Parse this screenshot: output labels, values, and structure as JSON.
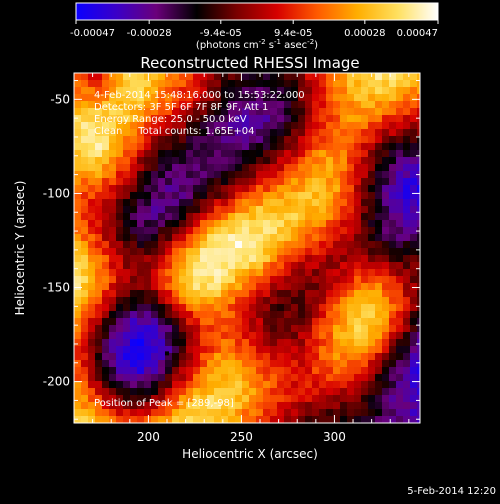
{
  "colorbar": {
    "tick_labels": [
      "-0.00047",
      "-0.00028",
      "-9.4e-05",
      "9.4e-05",
      "0.00028",
      "0.00047"
    ],
    "tick_values": [
      -0.00047,
      -0.00028,
      -9.4e-05,
      9.4e-05,
      0.00028,
      0.00047
    ],
    "range": [
      -0.00047,
      0.00047
    ],
    "units_prefix": "(photons cm",
    "units_exp1": "-2",
    "units_mid": " s",
    "units_exp2": "-1",
    "units_mid2": " asec",
    "units_exp3": "-2",
    "units_suffix": ")",
    "colors": [
      "#0a00ff",
      "#3a00c8",
      "#6a007a",
      "#000000",
      "#7a0000",
      "#d60000",
      "#ff5a00",
      "#ffae00",
      "#ffe060",
      "#ffffff"
    ]
  },
  "chart_data": {
    "type": "heatmap",
    "title": "Reconstructed RHESSI Image",
    "xlabel": "Heliocentric X (arcsec)",
    "ylabel": "Heliocentric Y (arcsec)",
    "xlim": [
      160,
      346
    ],
    "ylim": [
      -222,
      -36
    ],
    "x_ticks": [
      200,
      250,
      300
    ],
    "y_ticks": [
      -50,
      -100,
      -150,
      -200
    ],
    "x_tick_labels": [
      "200",
      "250",
      "300"
    ],
    "y_tick_labels": [
      "-50",
      "-100",
      "-150",
      "-200"
    ],
    "annotations": [
      "4-Feb-2014 15:48:16.000 to 15:53:22.000",
      "Detectors: 3F 5F 6F 7F 8F 9F, Att 1",
      "Energy Range: 25.0 - 50.0 keV",
      "Clean     Total counts: 1.65E+04"
    ],
    "peak_label": "Position of Peak = [289,-98]",
    "peak_position": [
      289,
      -98
    ],
    "marker_position": [
      210,
      -185
    ],
    "grid": false,
    "colormap": "blue-black-red-yellow-white",
    "value_range": [
      -0.00047,
      0.00047
    ],
    "intensity_grid_rows_top_to_bottom": [
      [
        0.3,
        0.15,
        0.6,
        0.75,
        0.55,
        0.4,
        0.15,
        -0.1,
        -0.3,
        -0.4,
        -0.3,
        -0.1,
        0.2,
        0.5,
        0.7,
        0.8,
        0.75,
        0.6
      ],
      [
        0.5,
        0.45,
        0.65,
        0.7,
        0.45,
        0.25,
        0.05,
        -0.25,
        -0.45,
        -0.55,
        -0.45,
        -0.2,
        0.15,
        0.45,
        0.6,
        0.6,
        0.45,
        0.35
      ],
      [
        0.75,
        0.8,
        0.7,
        0.5,
        0.2,
        0.0,
        -0.25,
        -0.5,
        -0.65,
        -0.65,
        -0.5,
        -0.2,
        0.15,
        0.4,
        0.45,
        0.25,
        0.1,
        0.0
      ],
      [
        0.8,
        0.85,
        0.6,
        0.2,
        -0.1,
        -0.3,
        -0.45,
        -0.55,
        -0.55,
        -0.45,
        -0.25,
        0.05,
        0.35,
        0.45,
        0.2,
        -0.1,
        -0.3,
        -0.35
      ],
      [
        0.55,
        0.6,
        0.35,
        -0.05,
        -0.35,
        -0.5,
        -0.55,
        -0.45,
        -0.3,
        -0.1,
        0.1,
        0.35,
        0.55,
        0.5,
        0.1,
        -0.35,
        -0.65,
        -0.75
      ],
      [
        0.3,
        0.25,
        0.05,
        -0.3,
        -0.55,
        -0.6,
        -0.45,
        -0.2,
        0.05,
        0.3,
        0.45,
        0.6,
        0.65,
        0.45,
        0.0,
        -0.45,
        -0.8,
        -0.9
      ],
      [
        0.25,
        0.1,
        -0.2,
        -0.5,
        -0.6,
        -0.4,
        -0.05,
        0.3,
        0.55,
        0.7,
        0.7,
        0.7,
        0.55,
        0.3,
        -0.05,
        -0.45,
        -0.7,
        -0.75
      ],
      [
        0.45,
        0.2,
        -0.15,
        -0.35,
        -0.3,
        0.05,
        0.5,
        0.8,
        0.9,
        0.85,
        0.7,
        0.5,
        0.3,
        0.1,
        -0.15,
        -0.4,
        -0.5,
        -0.45
      ],
      [
        0.75,
        0.45,
        0.05,
        -0.15,
        0.05,
        0.45,
        0.85,
        0.95,
        0.9,
        0.7,
        0.4,
        0.15,
        0.0,
        -0.05,
        0.0,
        -0.1,
        -0.2,
        -0.2
      ],
      [
        0.8,
        0.5,
        0.1,
        -0.1,
        0.15,
        0.55,
        0.85,
        0.8,
        0.55,
        0.25,
        0.0,
        -0.15,
        -0.1,
        0.15,
        0.35,
        0.35,
        0.1,
        -0.15
      ],
      [
        0.55,
        0.25,
        -0.2,
        -0.45,
        -0.25,
        0.2,
        0.5,
        0.5,
        0.25,
        0.0,
        -0.2,
        -0.2,
        0.05,
        0.45,
        0.7,
        0.6,
        0.25,
        -0.2
      ],
      [
        0.35,
        -0.1,
        -0.6,
        -0.85,
        -0.7,
        -0.25,
        0.15,
        0.3,
        0.2,
        0.0,
        -0.15,
        -0.1,
        0.2,
        0.55,
        0.75,
        0.55,
        0.05,
        -0.45
      ],
      [
        0.25,
        -0.25,
        -0.8,
        -1.0,
        -0.85,
        -0.35,
        0.15,
        0.4,
        0.35,
        0.15,
        0.0,
        0.05,
        0.3,
        0.5,
        0.5,
        0.2,
        -0.35,
        -0.7
      ],
      [
        0.3,
        -0.15,
        -0.6,
        -0.8,
        -0.6,
        -0.1,
        0.35,
        0.6,
        0.6,
        0.4,
        0.2,
        0.15,
        0.25,
        0.3,
        0.15,
        -0.2,
        -0.6,
        -0.85
      ],
      [
        0.55,
        0.2,
        -0.15,
        -0.3,
        -0.1,
        0.35,
        0.65,
        0.75,
        0.65,
        0.45,
        0.25,
        0.1,
        0.05,
        0.0,
        -0.15,
        -0.4,
        -0.65,
        -0.8
      ],
      [
        0.75,
        0.5,
        0.3,
        0.25,
        0.4,
        0.65,
        0.8,
        0.7,
        0.45,
        0.25,
        0.05,
        -0.1,
        -0.2,
        -0.25,
        -0.3,
        -0.45,
        -0.6,
        -0.65
      ]
    ]
  },
  "footer": {
    "timestamp": "5-Feb-2014 12:20"
  }
}
